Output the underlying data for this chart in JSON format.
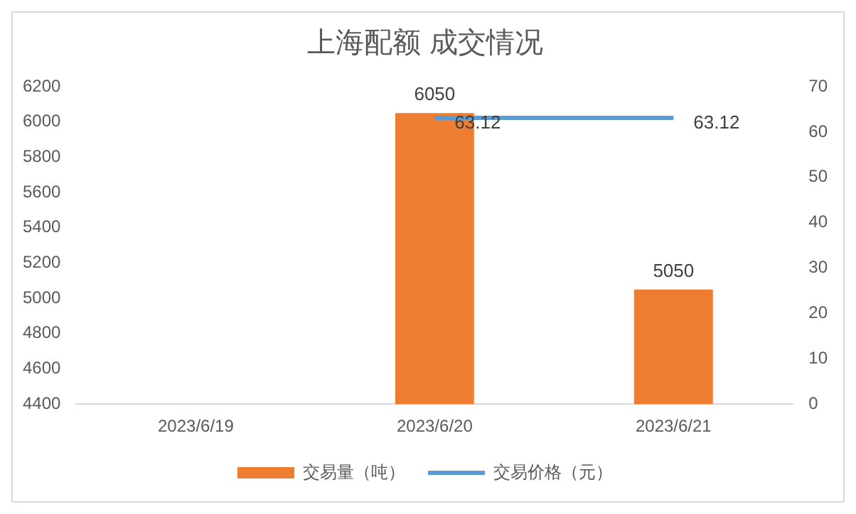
{
  "chart_data": {
    "type": "bar",
    "title": "上海配额 成交情况",
    "categories": [
      "2023/6/19",
      "2023/6/20",
      "2023/6/21"
    ],
    "series": [
      {
        "name": "交易量（吨）",
        "color": "#ed7d31",
        "values": [
          null,
          6050,
          5050
        ]
      },
      {
        "name": "交易价格（元）",
        "type": "line",
        "axis": "y2",
        "color": "#5b9bd5",
        "values": [
          null,
          63.12,
          63.12
        ]
      }
    ],
    "ylim": [
      4400,
      6200
    ],
    "yticks": [
      4400,
      4600,
      4800,
      5000,
      5200,
      5400,
      5600,
      5800,
      6000,
      6200
    ],
    "y2lim": [
      0,
      70
    ],
    "y2ticks": [
      0,
      10,
      20,
      30,
      40,
      50,
      60,
      70
    ],
    "data_labels": true,
    "legend": "bottom",
    "grid": false,
    "marker": "none",
    "line_style": "solid"
  }
}
